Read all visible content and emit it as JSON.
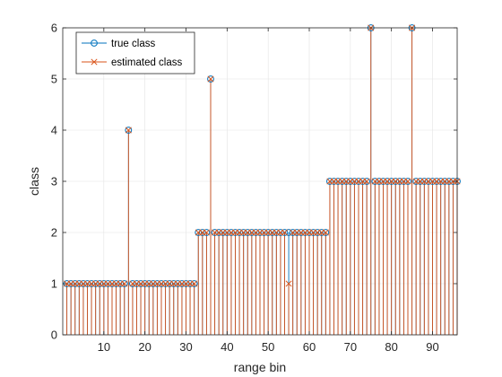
{
  "chart_data": {
    "type": "stem",
    "xlabel": "range bin",
    "ylabel": "class",
    "xlim": [
      0,
      96
    ],
    "ylim": [
      0,
      6
    ],
    "xticks": [
      10,
      20,
      30,
      40,
      50,
      60,
      70,
      80,
      90
    ],
    "yticks": [
      0,
      1,
      2,
      3,
      4,
      5,
      6
    ],
    "xtick_labels": [
      "10",
      "20",
      "30",
      "40",
      "50",
      "60",
      "70",
      "80",
      "90"
    ],
    "ytick_labels": [
      "0",
      "1",
      "2",
      "3",
      "4",
      "5",
      "6"
    ],
    "grid": true,
    "legend_position": "top-left",
    "x": [
      1,
      2,
      3,
      4,
      5,
      6,
      7,
      8,
      9,
      10,
      11,
      12,
      13,
      14,
      15,
      16,
      17,
      18,
      19,
      20,
      21,
      22,
      23,
      24,
      25,
      26,
      27,
      28,
      29,
      30,
      31,
      32,
      33,
      34,
      35,
      36,
      37,
      38,
      39,
      40,
      41,
      42,
      43,
      44,
      45,
      46,
      47,
      48,
      49,
      50,
      51,
      52,
      53,
      54,
      55,
      56,
      57,
      58,
      59,
      60,
      61,
      62,
      63,
      64,
      65,
      66,
      67,
      68,
      69,
      70,
      71,
      72,
      73,
      74,
      75,
      76,
      77,
      78,
      79,
      80,
      81,
      82,
      83,
      84,
      85,
      86,
      87,
      88,
      89,
      90,
      91,
      92,
      93,
      94,
      95,
      96
    ],
    "series": [
      {
        "name": "true class",
        "marker": "circle",
        "color": "#0072BD",
        "values": [
          1,
          1,
          1,
          1,
          1,
          1,
          1,
          1,
          1,
          1,
          1,
          1,
          1,
          1,
          1,
          4,
          1,
          1,
          1,
          1,
          1,
          1,
          1,
          1,
          1,
          1,
          1,
          1,
          1,
          1,
          1,
          1,
          2,
          2,
          2,
          5,
          2,
          2,
          2,
          2,
          2,
          2,
          2,
          2,
          2,
          2,
          2,
          2,
          2,
          2,
          2,
          2,
          2,
          2,
          2,
          2,
          2,
          2,
          2,
          2,
          2,
          2,
          2,
          2,
          3,
          3,
          3,
          3,
          3,
          3,
          3,
          3,
          3,
          3,
          6,
          3,
          3,
          3,
          3,
          3,
          3,
          3,
          3,
          3,
          6,
          3,
          3,
          3,
          3,
          3,
          3,
          3,
          3,
          3,
          3,
          3
        ]
      },
      {
        "name": "estimated class",
        "marker": "x",
        "color": "#D95319",
        "values": [
          1,
          1,
          1,
          1,
          1,
          1,
          1,
          1,
          1,
          1,
          1,
          1,
          1,
          1,
          1,
          4,
          1,
          1,
          1,
          1,
          1,
          1,
          1,
          1,
          1,
          1,
          1,
          1,
          1,
          1,
          1,
          1,
          2,
          2,
          2,
          5,
          2,
          2,
          2,
          2,
          2,
          2,
          2,
          2,
          2,
          2,
          2,
          2,
          2,
          2,
          2,
          2,
          2,
          2,
          1,
          2,
          2,
          2,
          2,
          2,
          2,
          2,
          2,
          2,
          3,
          3,
          3,
          3,
          3,
          3,
          3,
          3,
          3,
          3,
          6,
          3,
          3,
          3,
          3,
          3,
          3,
          3,
          3,
          3,
          6,
          3,
          3,
          3,
          3,
          3,
          3,
          3,
          3,
          3,
          3,
          3
        ]
      }
    ]
  }
}
